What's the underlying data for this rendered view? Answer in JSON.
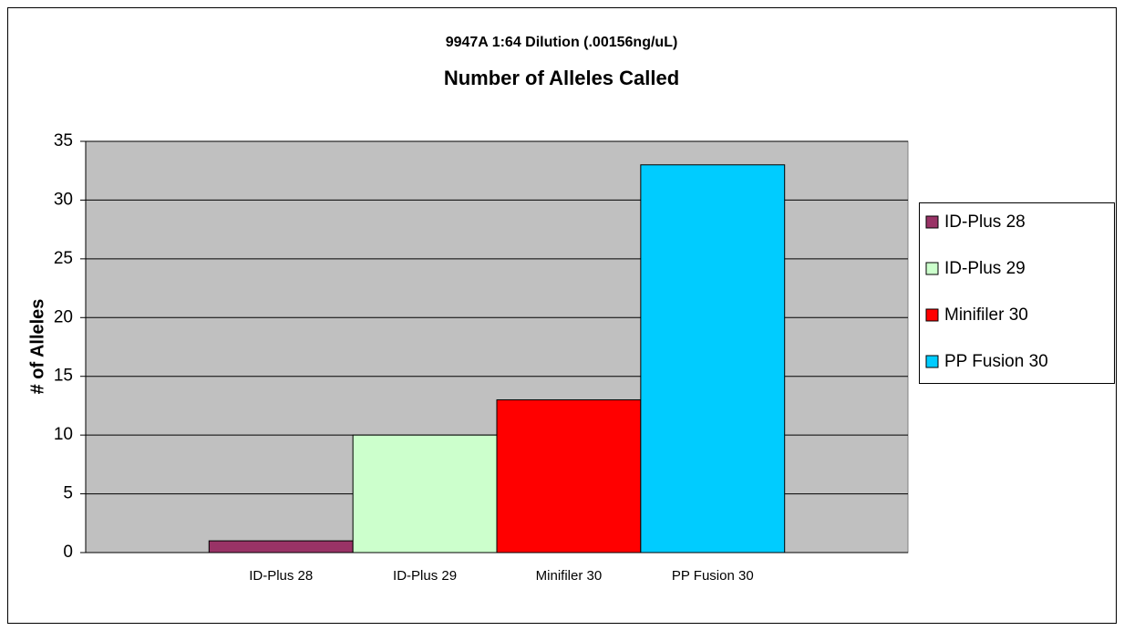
{
  "chart_data": {
    "type": "bar",
    "title": "9947A 1:64 Dilution (.00156ng/uL)",
    "subtitle": "Number of Alleles Called",
    "y_label": "# of Alleles",
    "categories": [
      "ID-Plus 28",
      "ID-Plus 29",
      "Minifiler 30",
      "PP Fusion 30"
    ],
    "values": [
      1,
      10,
      13,
      33
    ],
    "colors": [
      "#993366",
      "#ccffcc",
      "#ff0000",
      "#00ccff"
    ],
    "ylim": [
      0,
      35
    ],
    "yticks": [
      0,
      5,
      10,
      15,
      20,
      25,
      30,
      35
    ],
    "grid": true,
    "legend": "right"
  }
}
